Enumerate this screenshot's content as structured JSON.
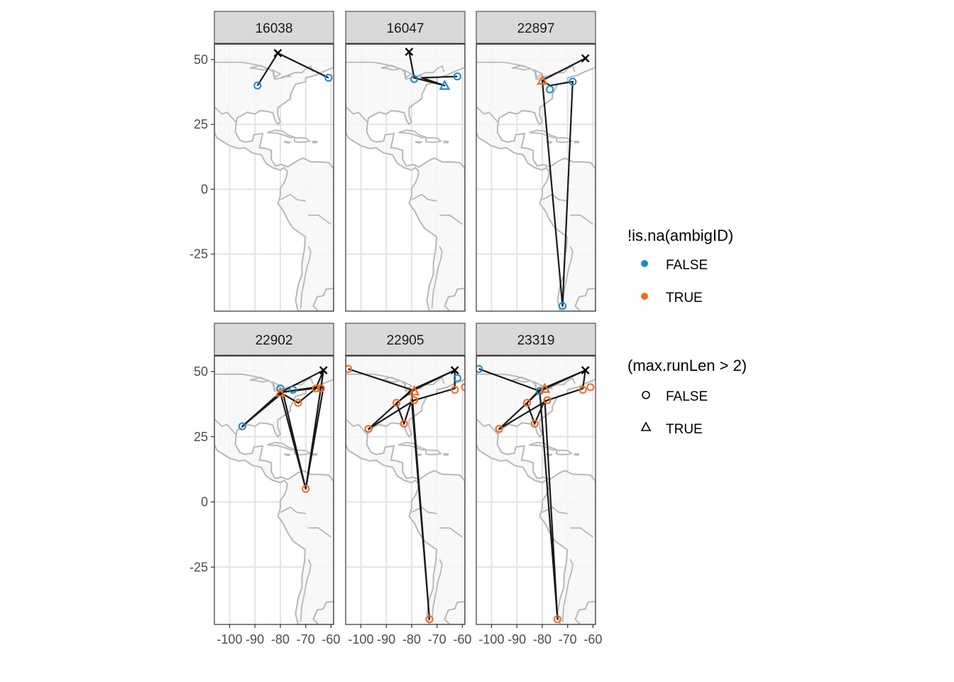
{
  "chart_data": {
    "type": "scatter",
    "facet_labels": [
      "16038",
      "16047",
      "22897",
      "22902",
      "22905",
      "23319"
    ],
    "x_ticks": [
      -100,
      -90,
      -80,
      -70,
      -60
    ],
    "x_tick_labels": [
      "-100",
      "-90",
      "-80",
      "-70",
      "-60"
    ],
    "y_ticks": [
      50,
      25,
      0,
      -25
    ],
    "y_tick_labels": [
      "50",
      "25",
      "0",
      "-25"
    ],
    "xlim": [
      -106,
      -59
    ],
    "ylim": [
      -47,
      56
    ],
    "colors": {
      "FALSE": "#1f8ac9",
      "TRUE": "#f26b1d",
      "path": "#1a1a1a",
      "land": "#f7f7f7",
      "coast": "#b8b8b8",
      "grid": "#e3e3e3",
      "strip": "#d9d9d9"
    },
    "legend_color": {
      "title": "!is.na(ambigID)",
      "items": [
        {
          "label": "FALSE",
          "color": "#1f8ac9"
        },
        {
          "label": "TRUE",
          "color": "#f26b1d"
        }
      ]
    },
    "legend_shape": {
      "title": "(max.runLen > 2)",
      "items": [
        {
          "label": "FALSE",
          "shape": "circle"
        },
        {
          "label": "TRUE",
          "shape": "triangle"
        }
      ]
    },
    "panels": [
      {
        "id": "16038",
        "path": [
          [
            -89,
            40
          ],
          [
            -81,
            52.5
          ],
          [
            -61,
            43
          ]
        ],
        "points": [
          {
            "x": -89,
            "y": 40,
            "ambig": false,
            "runLen": false
          },
          {
            "x": -61,
            "y": 43,
            "ambig": false,
            "runLen": false
          }
        ],
        "start": {
          "x": -81,
          "y": 52.5
        }
      },
      {
        "id": "16047",
        "path": [
          [
            -81,
            53
          ],
          [
            -79,
            43
          ],
          [
            -67,
            40
          ],
          [
            -76,
            43
          ],
          [
            -62,
            43.5
          ]
        ],
        "points": [
          {
            "x": -79,
            "y": 42.5,
            "ambig": false,
            "runLen": false
          },
          {
            "x": -62,
            "y": 43.5,
            "ambig": false,
            "runLen": false
          },
          {
            "x": -67,
            "y": 40,
            "ambig": false,
            "runLen": true
          }
        ],
        "start": {
          "x": -81,
          "y": 53
        }
      },
      {
        "id": "22897",
        "path": [
          [
            -63,
            50.5
          ],
          [
            -80,
            42
          ],
          [
            -72,
            -45
          ],
          [
            -68,
            41.5
          ],
          [
            -77,
            40
          ],
          [
            -80,
            42
          ],
          [
            -63,
            50.5
          ]
        ],
        "points": [
          {
            "x": -77,
            "y": 38.5,
            "ambig": false,
            "runLen": false
          },
          {
            "x": -68,
            "y": 41.5,
            "ambig": false,
            "runLen": false
          },
          {
            "x": -72,
            "y": -45,
            "ambig": false,
            "runLen": false
          },
          {
            "x": -80,
            "y": 42,
            "ambig": true,
            "runLen": true
          }
        ],
        "start": {
          "x": -63,
          "y": 50.5
        }
      },
      {
        "id": "22902",
        "path": [
          [
            -63,
            50.5
          ],
          [
            -80,
            42
          ],
          [
            -95,
            29
          ],
          [
            -79,
            42
          ],
          [
            -70,
            5
          ],
          [
            -63,
            44
          ],
          [
            -80,
            42
          ],
          [
            -73,
            38
          ],
          [
            -66,
            43.5
          ],
          [
            -63,
            50.5
          ],
          [
            -70,
            5
          ],
          [
            -80,
            42
          ],
          [
            -66,
            44
          ],
          [
            -64,
            43.5
          ],
          [
            -63,
            50.5
          ]
        ],
        "points": [
          {
            "x": -95,
            "y": 29,
            "ambig": false,
            "runLen": false
          },
          {
            "x": -80,
            "y": 43.5,
            "ambig": false,
            "runLen": false
          },
          {
            "x": -75,
            "y": 43,
            "ambig": false,
            "runLen": false
          },
          {
            "x": -70,
            "y": 5,
            "ambig": true,
            "runLen": false
          },
          {
            "x": -73,
            "y": 38,
            "ambig": true,
            "runLen": false
          },
          {
            "x": -66,
            "y": 43.5,
            "ambig": true,
            "runLen": false
          },
          {
            "x": -64,
            "y": 43.5,
            "ambig": true,
            "runLen": false
          },
          {
            "x": -80,
            "y": 42,
            "ambig": true,
            "runLen": true
          }
        ],
        "start": {
          "x": -63,
          "y": 50.5
        }
      },
      {
        "id": "22905",
        "path": [
          [
            -105,
            51
          ],
          [
            -80,
            43
          ],
          [
            -97,
            28
          ],
          [
            -79,
            39
          ],
          [
            -63,
            43.5
          ],
          [
            -63,
            50.5
          ],
          [
            -79,
            43
          ],
          [
            -86,
            38
          ],
          [
            -83,
            30
          ],
          [
            -80,
            39
          ],
          [
            -73,
            -45
          ],
          [
            -80,
            43
          ],
          [
            -63,
            50.5
          ]
        ],
        "points": [
          {
            "x": -105,
            "y": 51,
            "ambig": true,
            "runLen": false
          },
          {
            "x": -97,
            "y": 28,
            "ambig": true,
            "runLen": false
          },
          {
            "x": -86,
            "y": 38,
            "ambig": true,
            "runLen": false
          },
          {
            "x": -83,
            "y": 30,
            "ambig": true,
            "runLen": false
          },
          {
            "x": -79,
            "y": 39,
            "ambig": true,
            "runLen": false
          },
          {
            "x": -63,
            "y": 43,
            "ambig": true,
            "runLen": false
          },
          {
            "x": -59,
            "y": 44,
            "ambig": true,
            "runLen": false
          },
          {
            "x": -73,
            "y": -45,
            "ambig": true,
            "runLen": false
          },
          {
            "x": -62,
            "y": 47.5,
            "ambig": false,
            "runLen": false
          },
          {
            "x": -79,
            "y": 42.5,
            "ambig": true,
            "runLen": true
          }
        ],
        "start": {
          "x": -63,
          "y": 50.5
        }
      },
      {
        "id": "23319",
        "path": [
          [
            -105,
            51
          ],
          [
            -81,
            42.5
          ],
          [
            -97,
            28
          ],
          [
            -78,
            39
          ],
          [
            -64,
            43.5
          ],
          [
            -63,
            50.5
          ],
          [
            -81,
            43
          ],
          [
            -86,
            38
          ],
          [
            -83,
            30
          ],
          [
            -79,
            39
          ],
          [
            -74,
            -45
          ],
          [
            -81,
            42.5
          ],
          [
            -63,
            50.5
          ]
        ],
        "points": [
          {
            "x": -105,
            "y": 51,
            "ambig": false,
            "runLen": false
          },
          {
            "x": -97,
            "y": 28,
            "ambig": true,
            "runLen": false
          },
          {
            "x": -86,
            "y": 38,
            "ambig": true,
            "runLen": false
          },
          {
            "x": -83,
            "y": 30,
            "ambig": true,
            "runLen": false
          },
          {
            "x": -78,
            "y": 39,
            "ambig": true,
            "runLen": false
          },
          {
            "x": -64,
            "y": 43,
            "ambig": true,
            "runLen": false
          },
          {
            "x": -61,
            "y": 44,
            "ambig": true,
            "runLen": false
          },
          {
            "x": -74,
            "y": -45,
            "ambig": true,
            "runLen": false
          },
          {
            "x": -81,
            "y": 42.5,
            "ambig": false,
            "runLen": false
          },
          {
            "x": -79,
            "y": 43.5,
            "ambig": true,
            "runLen": true
          }
        ],
        "start": {
          "x": -63,
          "y": 50.5
        }
      }
    ]
  }
}
